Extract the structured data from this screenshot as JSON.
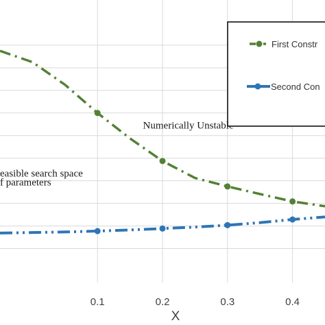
{
  "chart_data": {
    "type": "line",
    "xlabel": "X",
    "xlim": [
      -0.05,
      0.45
    ],
    "ylim": [
      0,
      1
    ],
    "x_ticks": [
      "0.1",
      "0.2",
      "0.3",
      "0.4"
    ],
    "x_tick_values": [
      0.1,
      0.2,
      0.3,
      0.4
    ],
    "y_gridlines": [
      0.12,
      0.2,
      0.28,
      0.36,
      0.44,
      0.52,
      0.6,
      0.68,
      0.76,
      0.84
    ],
    "grid": true,
    "legend_placement": "top-right",
    "series": [
      {
        "name": "First Constr",
        "color": "#538135",
        "style": "dash-dot",
        "x": [
          0.1,
          0.2,
          0.3,
          0.4
        ],
        "y": [
          0.6,
          0.43,
          0.34,
          0.287
        ],
        "curve_x": [
          -0.05,
          0.0,
          0.05,
          0.1,
          0.15,
          0.2,
          0.25,
          0.3,
          0.35,
          0.4,
          0.45
        ],
        "curve_y": [
          0.82,
          0.78,
          0.7,
          0.6,
          0.51,
          0.43,
          0.37,
          0.34,
          0.313,
          0.287,
          0.27
        ]
      },
      {
        "name": "Second Con",
        "color": "#2e75b6",
        "style": "dash-dot-dot",
        "x": [
          0.1,
          0.2,
          0.3,
          0.4
        ],
        "y": [
          0.182,
          0.191,
          0.203,
          0.223
        ],
        "curve_x": [
          -0.05,
          0.0,
          0.05,
          0.1,
          0.15,
          0.2,
          0.25,
          0.3,
          0.35,
          0.4,
          0.45
        ],
        "curve_y": [
          0.175,
          0.177,
          0.179,
          0.182,
          0.186,
          0.191,
          0.196,
          0.203,
          0.212,
          0.223,
          0.232
        ]
      }
    ],
    "annotations": [
      {
        "text": "Numerically Unstable",
        "x": 0.17,
        "y": 0.545
      },
      {
        "text": "easible search space",
        "x": -0.05,
        "y": 0.375
      },
      {
        "text": "f parameters",
        "x": -0.05,
        "y": 0.344
      }
    ]
  }
}
